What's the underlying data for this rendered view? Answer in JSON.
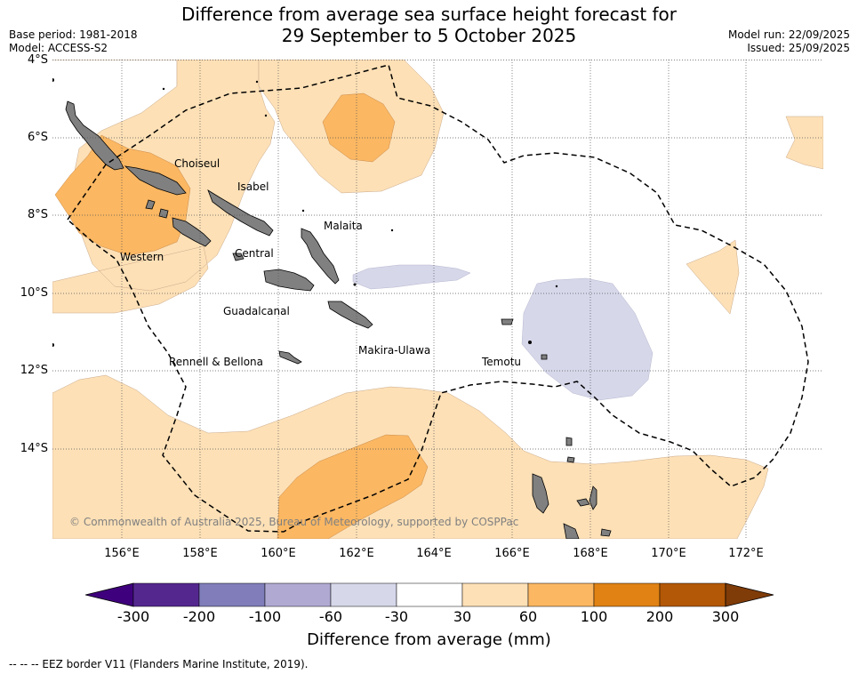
{
  "title_line1": "Difference from average sea surface height forecast for",
  "title_line2": "29 September to 5 October 2025",
  "base_period": "Base period: 1981-2018",
  "model": "Model: ACCESS-S2",
  "model_run": "Model run: 22/09/2025",
  "issued": "Issued: 25/09/2025",
  "lat_labels": [
    "4°S",
    "6°S",
    "8°S",
    "10°S",
    "12°S",
    "14°S"
  ],
  "lon_labels": [
    "156°E",
    "158°E",
    "160°E",
    "162°E",
    "164°E",
    "166°E",
    "168°E",
    "170°E",
    "172°E"
  ],
  "places": {
    "choiseul": "Choiseul",
    "isabel": "Isabel",
    "malaita": "Malaita",
    "western": "Western",
    "central": "Central",
    "guadalcanal": "Guadalcanal",
    "makira_ulawa": "Makira-Ulawa",
    "rennell_bellona": "Rennell & Bellona",
    "temotu": "Temotu"
  },
  "copyright": "© Commonwealth of Australia 2025, Bureau of Meteorology, supported by COSPPac",
  "colorbar": {
    "title": "Difference from average (mm)",
    "ticks": [
      "-300",
      "-200",
      "-100",
      "-60",
      "-30",
      "30",
      "60",
      "100",
      "200",
      "300"
    ],
    "colors": [
      "#3f007d",
      "#54278f",
      "#807dba",
      "#b0aad3",
      "#d6d7e9",
      "#ffffff",
      "#fde0b6",
      "#fbb762",
      "#e08214",
      "#b35806",
      "#7f3b08"
    ]
  },
  "footnote": "-- -- -- EEZ border V11 (Flanders Marine Institute, 2019).",
  "colors": {
    "land": "#808080",
    "light_orange": "#fde0b6",
    "mid_orange": "#fbb762",
    "light_purple": "#d6d7e9"
  }
}
